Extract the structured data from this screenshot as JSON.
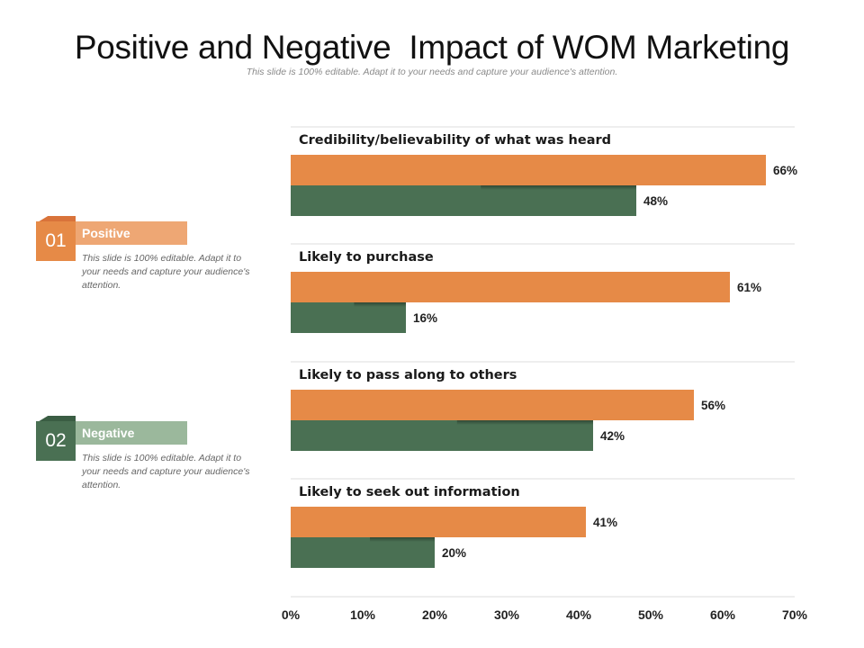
{
  "page": {
    "title": "Positive and Negative  Impact of WOM Marketing",
    "subtitle": "This slide is 100% editable. Adapt it to your needs and capture your audience's attention."
  },
  "legend": [
    {
      "num": "01",
      "label": "Positive",
      "desc": "This slide is 100% editable. Adapt it to your needs and capture your audience's attention.",
      "color": "#e68a47",
      "light": "#eea774"
    },
    {
      "num": "02",
      "label": "Negative",
      "desc": "This slide is 100% editable. Adapt it to your needs and capture your audience's attention.",
      "color": "#4a7053",
      "light": "#9bb89c"
    }
  ],
  "chart_data": {
    "type": "bar",
    "orientation": "horizontal",
    "categories": [
      "Credibility/believability of what was heard",
      "Likely to purchase",
      "Likely to pass along to others",
      "Likely to seek out information"
    ],
    "series": [
      {
        "name": "Positive",
        "values": [
          66,
          61,
          56,
          41
        ],
        "color": "#e68a47"
      },
      {
        "name": "Negative",
        "values": [
          48,
          16,
          42,
          20
        ],
        "color": "#4a7053"
      }
    ],
    "xlim": [
      0,
      70
    ],
    "ticks": [
      0,
      10,
      20,
      30,
      40,
      50,
      60,
      70
    ],
    "tick_labels": [
      "0%",
      "10%",
      "20%",
      "30%",
      "40%",
      "50%",
      "60%",
      "70%"
    ],
    "value_suffix": "%",
    "grid": true
  }
}
